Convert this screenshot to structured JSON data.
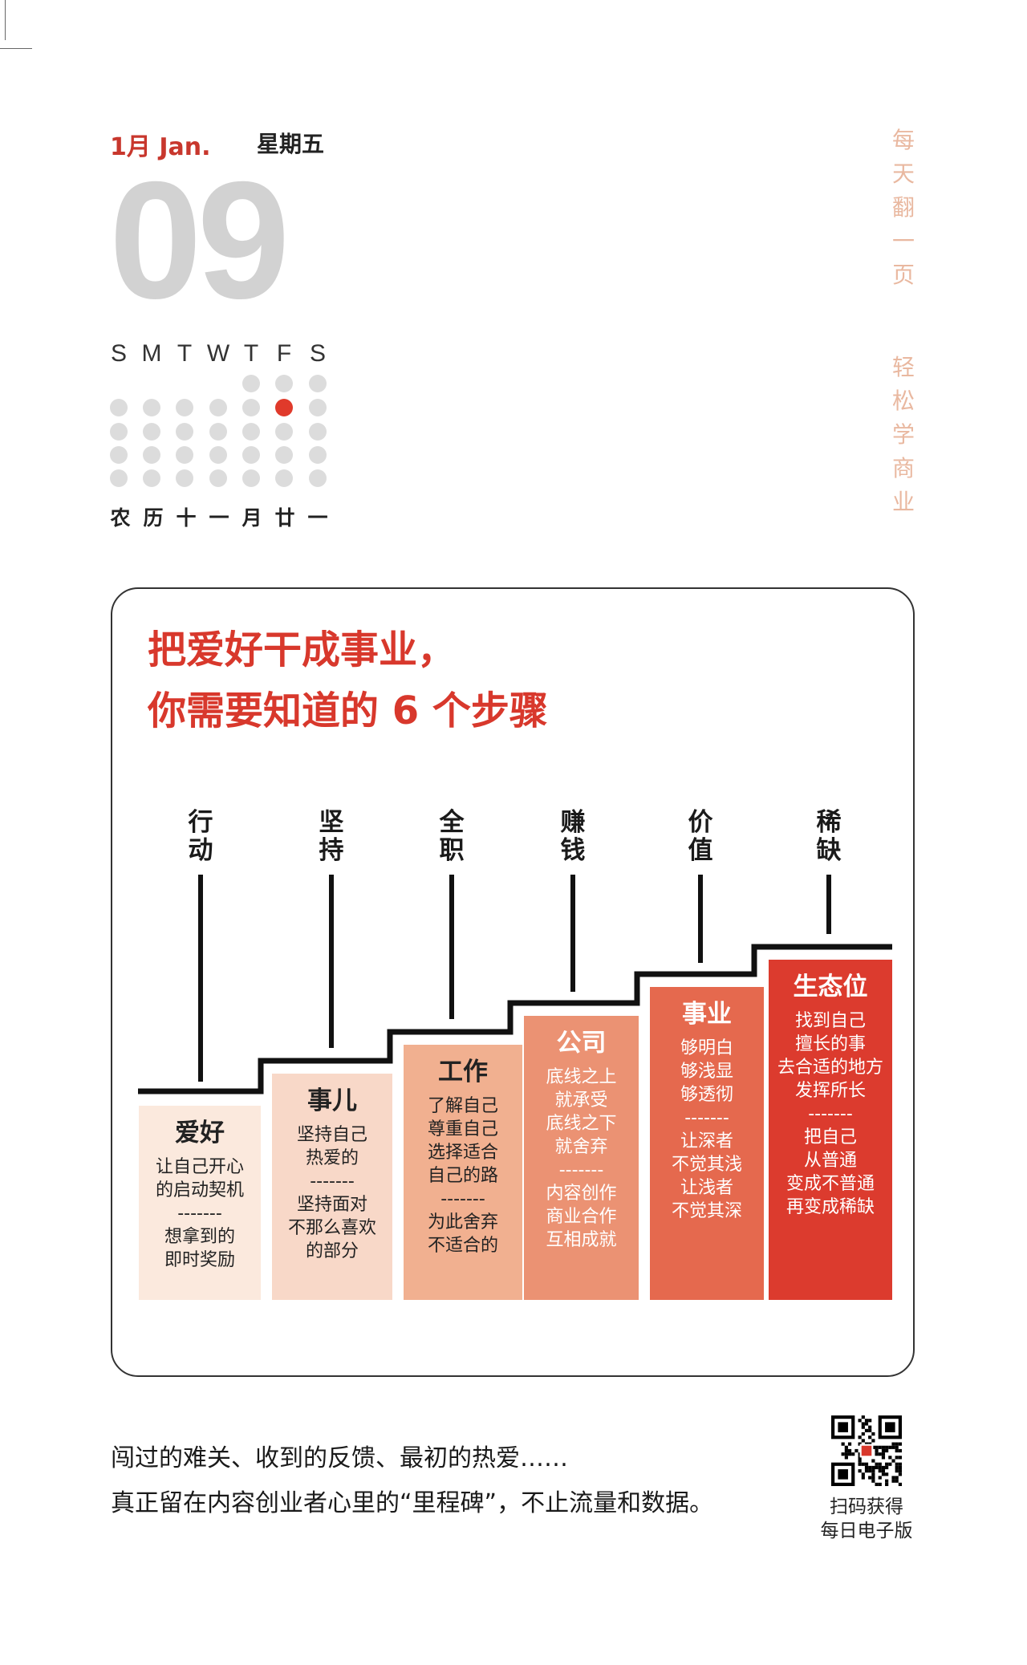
{
  "calendar": {
    "month": "1月 Jan.",
    "weekday": "星期五",
    "day": "09",
    "weekdays": [
      "S",
      "M",
      "T",
      "W",
      "T",
      "F",
      "S"
    ],
    "lunar": [
      "农",
      "历",
      "十",
      "一",
      "月",
      "廿",
      "一"
    ],
    "today_color": "#e03a2b",
    "dot_color": "#dcdcdc"
  },
  "slogan": {
    "line1": [
      "每",
      "天",
      "翻",
      "一",
      "页"
    ],
    "line2": [
      "轻",
      "松",
      "学",
      "商",
      "业"
    ],
    "color": "#e9b8a0"
  },
  "card": {
    "title_line1": "把爱好干成事业，",
    "title_line2": "你需要知道的 6 个步骤",
    "title_color": "#d8382c",
    "steps": [
      {
        "label": [
          "行",
          "动"
        ],
        "title": "爱好",
        "lines": [
          "让自己开心",
          "的启动契机",
          "-------",
          "想拿到的",
          "即时奖励"
        ],
        "color": "#fbe9dd",
        "text_color": "#222222"
      },
      {
        "label": [
          "坚",
          "持"
        ],
        "title": "事儿",
        "lines": [
          "坚持自己",
          "热爱的",
          "-------",
          "坚持面对",
          "不那么喜欢",
          "的部分"
        ],
        "color": "#f8d8c8",
        "text_color": "#222222"
      },
      {
        "label": [
          "全",
          "职"
        ],
        "title": "工作",
        "lines": [
          "了解自己",
          "尊重自己",
          "选择适合",
          "自己的路",
          "-------",
          "为此舍弃",
          "不适合的"
        ],
        "color": "#f1b090",
        "text_color": "#222222"
      },
      {
        "label": [
          "赚",
          "钱"
        ],
        "title": "公司",
        "lines": [
          "底线之上",
          "就承受",
          "底线之下",
          "就舍弃",
          "-------",
          "内容创作",
          "商业合作",
          "互相成就"
        ],
        "color": "#eb9273",
        "text_color": "#ffffff"
      },
      {
        "label": [
          "价",
          "值"
        ],
        "title": "事业",
        "lines": [
          "够明白",
          "够浅显",
          "够透彻",
          "-------",
          "让深者",
          "不觉其浅",
          "让浅者",
          "不觉其深"
        ],
        "color": "#e5694e",
        "text_color": "#ffffff"
      },
      {
        "label": [
          "稀",
          "缺"
        ],
        "title": "生态位",
        "lines": [
          "找到自己",
          "擅长的事",
          "去合适的地方",
          "发挥所长",
          "-------",
          "把自己",
          "从普通",
          "变成不普通",
          "再变成稀缺"
        ],
        "color": "#dc3b2e",
        "text_color": "#ffffff"
      }
    ]
  },
  "footer": {
    "line1": "闯过的难关、收到的反馈、最初的热爱……",
    "line2": "真正留在内容创业者心里的“里程碑”，不止流量和数据。",
    "qr_label_line1": "扫码获得",
    "qr_label_line2": "每日电子版"
  }
}
